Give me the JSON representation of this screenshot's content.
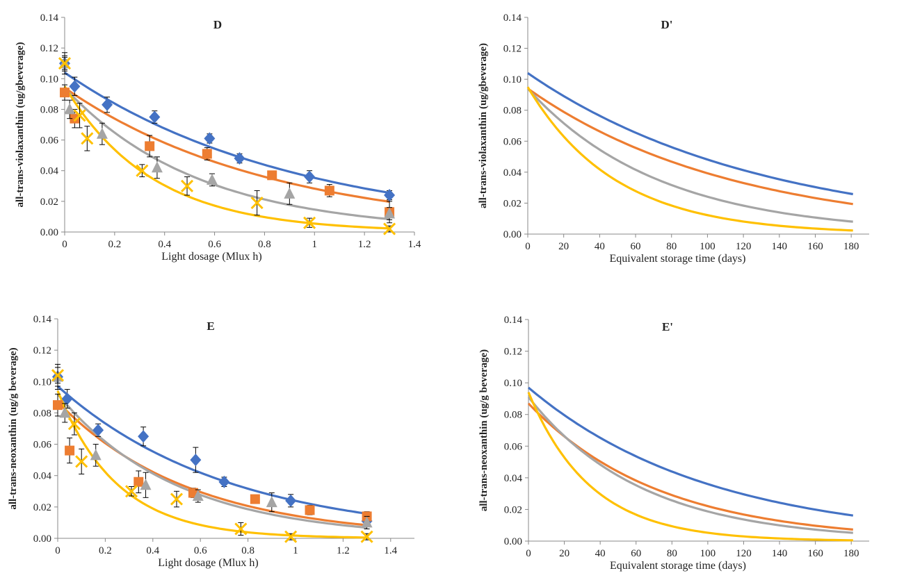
{
  "colors": {
    "s1": "#4472C4",
    "s2": "#ED7D31",
    "s3": "#A5A5A5",
    "s4": "#FFC000",
    "axis": "#888888",
    "text": "#222222"
  },
  "chart_data": [
    {
      "id": "D",
      "type": "scatter",
      "title": "D",
      "xlabel": "Light dosage (Mlux h)",
      "ylabel": "all-trans-violaxanthin (ug/gbeverage)",
      "xlim": [
        0,
        1.4
      ],
      "ylim": [
        0,
        0.14
      ],
      "xticks": [
        "0",
        "0.2",
        "0.4",
        "0.6",
        "0.8",
        "1",
        "1.2",
        "1.4"
      ],
      "yticks": [
        "0.00",
        "0.02",
        "0.04",
        "0.06",
        "0.08",
        "0.10",
        "0.12",
        "0.14"
      ],
      "series": [
        {
          "marker": "diamond",
          "color": "#4472C4",
          "points": [
            [
              0,
              0.11
            ],
            [
              0.04,
              0.095
            ],
            [
              0.17,
              0.083
            ],
            [
              0.36,
              0.075
            ],
            [
              0.58,
              0.061
            ],
            [
              0.7,
              0.048
            ],
            [
              0.98,
              0.036
            ],
            [
              1.3,
              0.024
            ]
          ],
          "errors": [
            0.007,
            0.006,
            0.005,
            0.004,
            0.003,
            0.003,
            0.004,
            0.003
          ],
          "fit": {
            "a": 0.104,
            "k": 1.08
          }
        },
        {
          "marker": "square",
          "color": "#ED7D31",
          "points": [
            [
              0,
              0.091
            ],
            [
              0.04,
              0.074
            ],
            [
              0.34,
              0.056
            ],
            [
              0.57,
              0.051
            ],
            [
              0.83,
              0.037
            ],
            [
              1.06,
              0.027
            ],
            [
              1.3,
              0.013
            ]
          ],
          "errors": [
            0.005,
            0.006,
            0.007,
            0.004,
            0.002,
            0.004,
            0.007
          ],
          "fit": {
            "a": 0.094,
            "k": 1.2
          }
        },
        {
          "marker": "triangle",
          "color": "#A5A5A5",
          "points": [
            [
              0,
              0.11
            ],
            [
              0.02,
              0.08
            ],
            [
              0.15,
              0.064
            ],
            [
              0.37,
              0.042
            ],
            [
              0.59,
              0.034
            ],
            [
              0.9,
              0.025
            ],
            [
              1.3,
              0.012
            ]
          ],
          "errors": [
            0.005,
            0.006,
            0.007,
            0.007,
            0.004,
            0.007,
            0.004
          ],
          "fit": {
            "a": 0.094,
            "k": 1.86
          }
        },
        {
          "marker": "x",
          "color": "#FFC000",
          "points": [
            [
              0,
              0.11
            ],
            [
              0.06,
              0.076
            ],
            [
              0.09,
              0.061
            ],
            [
              0.31,
              0.04
            ],
            [
              0.49,
              0.03
            ],
            [
              0.77,
              0.019
            ],
            [
              0.98,
              0.006
            ],
            [
              1.3,
              0.002
            ]
          ],
          "errors": [
            0.004,
            0.008,
            0.008,
            0.004,
            0.006,
            0.008,
            0.003,
            0.002
          ],
          "fit": {
            "a": 0.095,
            "k": 2.85
          }
        }
      ]
    },
    {
      "id": "Dp",
      "type": "line",
      "title": "D'",
      "xlabel": "Equivalent storage time (days)",
      "ylabel": "all-trans-violaxanthin (ug/gbeverage)",
      "xlim": [
        0,
        190
      ],
      "ylim": [
        0,
        0.14
      ],
      "xticks": [
        "0",
        "20",
        "40",
        "60",
        "80",
        "100",
        "120",
        "140",
        "160",
        "180"
      ],
      "yticks": [
        "0.00",
        "0.02",
        "0.04",
        "0.06",
        "0.08",
        "0.10",
        "0.12",
        "0.14"
      ],
      "series": [
        {
          "color": "#4472C4",
          "fit": {
            "a": 0.104,
            "k": 0.0077
          },
          "x_range": [
            0,
            181
          ]
        },
        {
          "color": "#ED7D31",
          "fit": {
            "a": 0.094,
            "k": 0.00872
          },
          "x_range": [
            0,
            181
          ]
        },
        {
          "color": "#A5A5A5",
          "fit": {
            "a": 0.094,
            "k": 0.0136
          },
          "x_range": [
            0,
            181
          ]
        },
        {
          "color": "#FFC000",
          "fit": {
            "a": 0.095,
            "k": 0.0205
          },
          "x_range": [
            0,
            181
          ]
        }
      ]
    },
    {
      "id": "E",
      "type": "scatter",
      "title": "E",
      "xlabel": "Light dosage (Mlux h)",
      "ylabel": "all-trans-neoxanthin (ug/g beverage)",
      "xlim": [
        0,
        1.5
      ],
      "ylim": [
        0,
        0.14
      ],
      "xticks": [
        "0",
        "0.2",
        "0.4",
        "0.6",
        "0.8",
        "1",
        "1.2",
        "1.4"
      ],
      "yticks": [
        "0.00",
        "0.02",
        "0.04",
        "0.06",
        "0.08",
        "0.10",
        "0.12",
        "0.14"
      ],
      "series": [
        {
          "marker": "diamond",
          "color": "#4472C4",
          "points": [
            [
              0,
              0.103
            ],
            [
              0.04,
              0.089
            ],
            [
              0.17,
              0.069
            ],
            [
              0.36,
              0.065
            ],
            [
              0.58,
              0.05
            ],
            [
              0.7,
              0.036
            ],
            [
              0.98,
              0.024
            ],
            [
              1.3,
              0.011
            ]
          ],
          "errors": [
            0.008,
            0.006,
            0.004,
            0.006,
            0.008,
            0.003,
            0.004,
            0.003
          ],
          "fit": {
            "a": 0.097,
            "k": 1.4
          }
        },
        {
          "marker": "square",
          "color": "#ED7D31",
          "points": [
            [
              0,
              0.085
            ],
            [
              0.05,
              0.056
            ],
            [
              0.34,
              0.036
            ],
            [
              0.57,
              0.029
            ],
            [
              0.83,
              0.025
            ],
            [
              1.06,
              0.018
            ],
            [
              1.3,
              0.014
            ]
          ],
          "errors": [
            0.007,
            0.008,
            0.007,
            0.003,
            0.002,
            0.003,
            0.003
          ],
          "fit": {
            "a": 0.087,
            "k": 1.8
          }
        },
        {
          "marker": "triangle",
          "color": "#A5A5A5",
          "points": [
            [
              0,
              0.103
            ],
            [
              0.03,
              0.08
            ],
            [
              0.16,
              0.053
            ],
            [
              0.37,
              0.034
            ],
            [
              0.59,
              0.027
            ],
            [
              0.9,
              0.023
            ],
            [
              1.3,
              0.01
            ]
          ],
          "errors": [
            0.006,
            0.006,
            0.007,
            0.008,
            0.004,
            0.006,
            0.004
          ],
          "fit": {
            "a": 0.092,
            "k": 2.0
          }
        },
        {
          "marker": "x",
          "color": "#FFC000",
          "points": [
            [
              0,
              0.104
            ],
            [
              0.07,
              0.073
            ],
            [
              0.1,
              0.049
            ],
            [
              0.31,
              0.03
            ],
            [
              0.5,
              0.025
            ],
            [
              0.77,
              0.006
            ],
            [
              0.98,
              0.001
            ],
            [
              1.3,
              0.001
            ]
          ],
          "errors": [
            0.005,
            0.007,
            0.008,
            0.003,
            0.005,
            0.004,
            0.002,
            0.002
          ],
          "fit": {
            "a": 0.094,
            "k": 4.0
          }
        }
      ]
    },
    {
      "id": "Ep",
      "type": "line",
      "title": "E'",
      "xlabel": "Equivalent storage time (days)",
      "ylabel": "all-trans-neoxanthin (ug/g beverage)",
      "xlim": [
        0,
        190
      ],
      "ylim": [
        0,
        0.14
      ],
      "xticks": [
        "0",
        "20",
        "40",
        "60",
        "80",
        "100",
        "120",
        "140",
        "160",
        "180"
      ],
      "yticks": [
        "0.00",
        "0.02",
        "0.04",
        "0.06",
        "0.08",
        "0.10",
        "0.12",
        "0.14"
      ],
      "series": [
        {
          "color": "#4472C4",
          "fit": {
            "a": 0.097,
            "k": 0.0099
          },
          "x_range": [
            0,
            181
          ]
        },
        {
          "color": "#ED7D31",
          "fit": {
            "a": 0.087,
            "k": 0.0137
          },
          "x_range": [
            0,
            181
          ]
        },
        {
          "color": "#A5A5A5",
          "fit": {
            "a": 0.091,
            "k": 0.0158
          },
          "x_range": [
            0,
            181
          ]
        },
        {
          "color": "#FFC000",
          "fit": {
            "a": 0.094,
            "k": 0.0288
          },
          "x_range": [
            0,
            181
          ]
        }
      ]
    }
  ]
}
